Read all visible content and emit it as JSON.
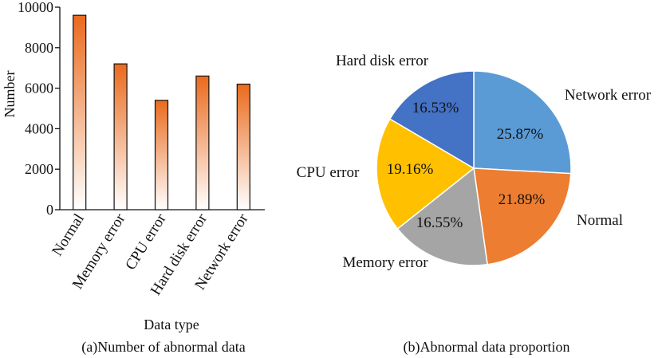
{
  "chart_data": [
    {
      "type": "bar",
      "title": "",
      "caption": "(a)Number of abnormal data",
      "xlabel": "Data type",
      "ylabel": "Number",
      "ylim": [
        0,
        10000
      ],
      "yticks": [
        0,
        2000,
        4000,
        6000,
        8000,
        10000
      ],
      "categories": [
        "Normal",
        "Memory error",
        "CPU error",
        "Hard disk error",
        "Network error"
      ],
      "values": [
        9600,
        7200,
        5400,
        6600,
        6200
      ],
      "bar_color_top": "#ea6a1d",
      "bar_color_bottom": "#ffffff",
      "grid": false
    },
    {
      "type": "pie",
      "title": "",
      "caption": "(b)Abnormal data proportion",
      "slices": [
        {
          "label": "Network error",
          "percent_label": "25.87%",
          "value": 25.87,
          "color": "#5b9bd5"
        },
        {
          "label": "Normal",
          "percent_label": "21.89%",
          "value": 21.89,
          "color": "#ed7d31"
        },
        {
          "label": "Memory error",
          "percent_label": "16.55%",
          "value": 16.55,
          "color": "#a5a5a5"
        },
        {
          "label": "CPU error",
          "percent_label": "19.16%",
          "value": 19.16,
          "color": "#ffc000"
        },
        {
          "label": "Hard disk error",
          "percent_label": "16.53%",
          "value": 16.53,
          "color": "#4472c4"
        }
      ]
    }
  ]
}
